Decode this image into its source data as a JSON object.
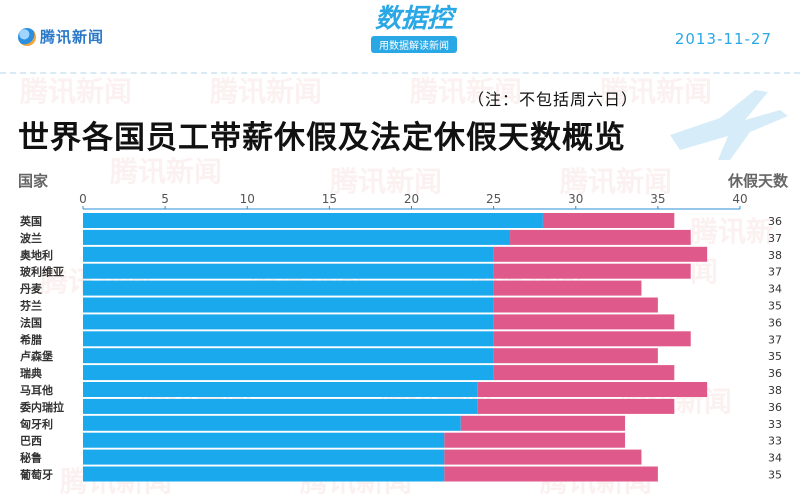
{
  "header": {
    "logo_text": "腾讯新闻",
    "brand_main": "数据控",
    "brand_sub": "用数据解读新闻",
    "date": "2013-11-27"
  },
  "watermark_text": "腾讯新闻",
  "note": "（注：不包括周六日）",
  "title": "世界各国员工带薪休假及法定休假天数概览",
  "colors": {
    "paid": "#1aa9ec",
    "legal": "#e0598b",
    "axis": "#2a8fd6"
  },
  "chart_data": {
    "type": "bar",
    "orientation": "horizontal",
    "stacked": true,
    "ylabel": "国家",
    "xlabel": "休假天数",
    "xlim": [
      0,
      40
    ],
    "xticks": [
      0,
      5,
      10,
      15,
      20,
      25,
      30,
      35,
      40
    ],
    "categories": [
      "英国",
      "波兰",
      "奥地利",
      "玻利维亚",
      "丹麦",
      "芬兰",
      "法国",
      "希腊",
      "卢森堡",
      "瑞典",
      "马耳他",
      "委内瑞拉",
      "匈牙利",
      "巴西",
      "秘鲁",
      "葡萄牙"
    ],
    "series": [
      {
        "values": [
          28,
          26,
          25,
          25,
          25,
          25,
          25,
          25,
          25,
          25,
          24,
          24,
          23,
          22,
          22,
          22
        ]
      },
      {
        "values": [
          8,
          11,
          13,
          12,
          9,
          10,
          11,
          12,
          10,
          11,
          14,
          12,
          10,
          11,
          12,
          13
        ]
      }
    ],
    "totals": [
      36,
      37,
      38,
      37,
      34,
      35,
      36,
      37,
      35,
      36,
      38,
      36,
      33,
      33,
      34,
      35
    ]
  }
}
